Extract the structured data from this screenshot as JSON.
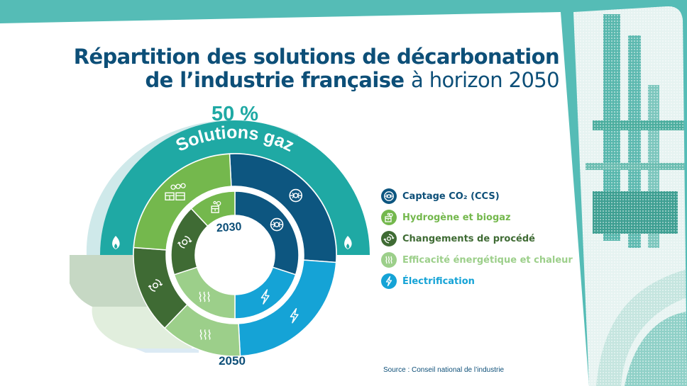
{
  "title": {
    "line1": "Répartition des solutions de décarbonation",
    "line2_bold": "de l’industrie française",
    "line2_light": "à horizon 2050"
  },
  "colors": {
    "ccs": "#0d5680",
    "hydrogen": "#74b84d",
    "process": "#3f6b34",
    "efficiency": "#9ccf8a",
    "electrification": "#15a3d6",
    "gas": "#1fa9a4",
    "teal_bg": "#55bcb6",
    "navy": "#0d4f78"
  },
  "chart_data": {
    "type": "donut",
    "gas_share_label": "50 %",
    "gas_arc_label": "Solutions gaz",
    "rings": [
      {
        "name": "2030",
        "slices": [
          {
            "category": "Captage CO₂ (CCS)",
            "value": 30,
            "icon": "ccs-icon"
          },
          {
            "category": "Électrification",
            "value": 20,
            "icon": "lightning-icon"
          },
          {
            "category": "Efficacité énergétique et chaleur",
            "value": 20,
            "icon": "heat-waves-icon"
          },
          {
            "category": "Changements de procédé",
            "value": 18,
            "icon": "process-cycle-icon"
          },
          {
            "category": "Hydrogène et biogaz",
            "value": 12,
            "icon": "hydrogen-box-icon"
          }
        ]
      },
      {
        "name": "2050",
        "slices": [
          {
            "category": "Captage CO₂ (CCS)",
            "value": 27,
            "icon": "ccs-icon"
          },
          {
            "category": "Électrification",
            "value": 23,
            "icon": "lightning-icon"
          },
          {
            "category": "Efficacité énergétique et chaleur",
            "value": 13,
            "icon": "heat-waves-icon"
          },
          {
            "category": "Changements de procédé",
            "value": 14,
            "icon": "process-cycle-icon"
          },
          {
            "category": "Hydrogène et biogaz",
            "value": 23,
            "icon": "hydrogen-molecules-icon"
          }
        ]
      }
    ]
  },
  "legend": [
    {
      "label": "Captage CO₂ (CCS)",
      "color": "#0d5680",
      "icon": "ccs-icon"
    },
    {
      "label": "Hydrogène et biogaz",
      "color": "#74b84d",
      "icon": "hydrogen-box-icon"
    },
    {
      "label": "Changements de procédé",
      "color": "#3f6b34",
      "icon": "process-cycle-icon"
    },
    {
      "label": "Efficacité énergétique et chaleur",
      "color": "#9ccf8a",
      "icon": "heat-waves-icon"
    },
    {
      "label": "Électrification",
      "color": "#15a3d6",
      "icon": "lightning-icon"
    }
  ],
  "source": "Source : Conseil national de l’industrie"
}
